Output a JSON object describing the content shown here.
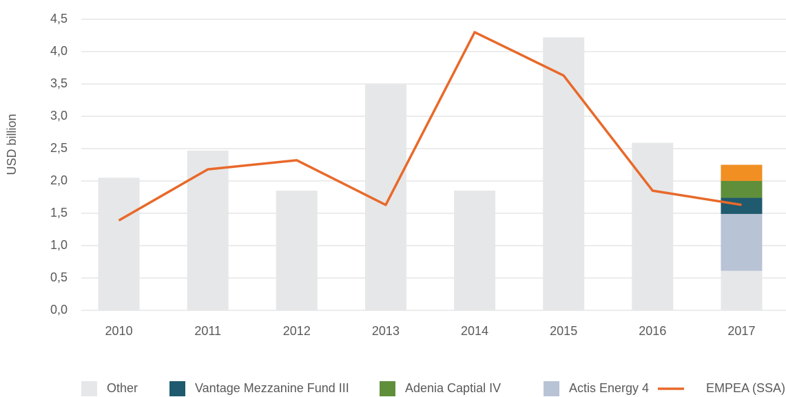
{
  "chart_data": {
    "type": "bar",
    "y_label": "USD billion",
    "categories": [
      "2010",
      "2011",
      "2012",
      "2013",
      "2014",
      "2015",
      "2016",
      "2017"
    ],
    "series": [
      {
        "name": "Other",
        "type": "bar",
        "color": "#e6e7e8",
        "values": [
          2.05,
          2.47,
          1.85,
          3.49,
          1.85,
          4.22,
          2.59,
          0.61
        ]
      },
      {
        "name": "Actis Energy 4",
        "type": "bar",
        "color": "#b9c3d6",
        "values": [
          null,
          null,
          null,
          null,
          null,
          null,
          null,
          0.88
        ]
      },
      {
        "name": "Vantage Mezzanine Fund III",
        "type": "bar",
        "color": "#1f5a6e",
        "values": [
          null,
          null,
          null,
          null,
          null,
          null,
          null,
          0.25
        ]
      },
      {
        "name": "Adenia Captial IV",
        "type": "bar",
        "color": "#5f8f3a",
        "values": [
          null,
          null,
          null,
          null,
          null,
          null,
          null,
          0.26
        ]
      },
      {
        "name": null,
        "type": "bar",
        "color": "#f18f23",
        "values": [
          null,
          null,
          null,
          null,
          null,
          null,
          null,
          0.25
        ]
      },
      {
        "name": "EMPEA (SSA)",
        "type": "line",
        "color": "#e8692a",
        "values": [
          1.39,
          2.18,
          2.32,
          1.63,
          4.3,
          3.63,
          1.85,
          1.63
        ]
      }
    ],
    "ylim": [
      0,
      4.5
    ],
    "yticks": [
      {
        "value": 0,
        "label": "0,0"
      },
      {
        "value": 0.5,
        "label": "0,5"
      },
      {
        "value": 1,
        "label": "1,0"
      },
      {
        "value": 1.5,
        "label": "1,5"
      },
      {
        "value": 2,
        "label": "2,0"
      },
      {
        "value": 2.5,
        "label": "2,5"
      },
      {
        "value": 3,
        "label": "3,0"
      },
      {
        "value": 3.5,
        "label": "3,5"
      },
      {
        "value": 4,
        "label": "4,0"
      },
      {
        "value": 4.5,
        "label": "4,5"
      }
    ],
    "grid": true,
    "legend": "bottom"
  }
}
